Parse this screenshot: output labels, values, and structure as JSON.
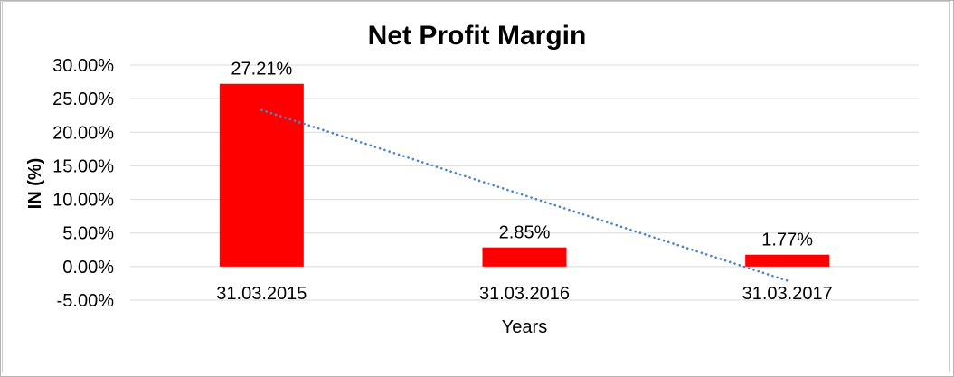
{
  "chart_data": {
    "type": "bar",
    "title": "Net Profit Margin",
    "xlabel": "Years",
    "ylabel": "IN (%)",
    "categories": [
      "31.03.2015",
      "31.03.2016",
      "31.03.2017"
    ],
    "values": [
      27.21,
      2.85,
      1.77
    ],
    "data_labels": [
      "27.21%",
      "2.85%",
      "1.77%"
    ],
    "ylim": [
      -5,
      30
    ],
    "ytick_values": [
      30,
      25,
      20,
      15,
      10,
      5,
      0,
      -5
    ],
    "ytick_labels": [
      "30.00%",
      "25.00%",
      "20.00%",
      "15.00%",
      "10.00%",
      "5.00%",
      "0.00%",
      "-5.00%"
    ],
    "grid": true,
    "legend": "none",
    "bar_color": "#ff0000",
    "text_color": "#000000",
    "gridline_color": "#d9d9d9",
    "trendline": {
      "type": "linear",
      "style": "dotted",
      "color": "#4a86c8",
      "start_value": 23.3,
      "end_value": -2.1
    }
  }
}
